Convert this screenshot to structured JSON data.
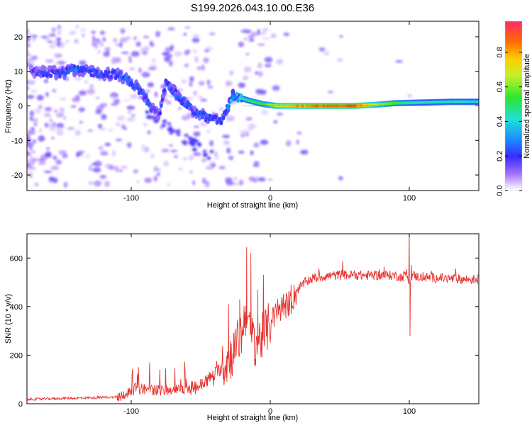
{
  "title": "S199.2026.043.10.00.E36",
  "colors": {
    "snr_line": "#e8322e",
    "ridge_low": "#7a3ff0",
    "ridge_mid": "#18d8d8",
    "ridge_high": "#ff2a2a"
  },
  "chart_data": [
    {
      "type": "heatmap",
      "name": "spectrogram",
      "xlabel": "Height of straight line (km)",
      "ylabel": "Frequency (Hz)",
      "xlim": [
        -175,
        150
      ],
      "ylim": [
        -24.5,
        24.5
      ],
      "xticks": [
        -100,
        0,
        100
      ],
      "yticks": [
        -20,
        -10,
        0,
        10,
        20
      ],
      "xtick_labels": [
        "-100",
        "0",
        "100"
      ],
      "ytick_labels": [
        "-20",
        "-10",
        "0",
        "10",
        "20"
      ],
      "colorbar": {
        "label": "Normalized spectral amplitude",
        "range": [
          0,
          0.98
        ],
        "ticks": [
          0.0,
          0.2,
          0.4,
          0.6,
          0.8
        ],
        "tick_labels": [
          "0.0",
          "0.2",
          "0.4",
          "0.6",
          "0.8"
        ]
      },
      "ridge": [
        {
          "x": -170,
          "f": 10.0,
          "a": 0.18
        },
        {
          "x": -150,
          "f": 9.5,
          "a": 0.24
        },
        {
          "x": -140,
          "f": 10.5,
          "a": 0.26
        },
        {
          "x": -125,
          "f": 9.5,
          "a": 0.22
        },
        {
          "x": -110,
          "f": 9.0,
          "a": 0.22
        },
        {
          "x": -100,
          "f": 7.0,
          "a": 0.26
        },
        {
          "x": -92,
          "f": 3.5,
          "a": 0.24
        },
        {
          "x": -85,
          "f": -1.0,
          "a": 0.22
        },
        {
          "x": -80,
          "f": -3.0,
          "a": 0.2
        },
        {
          "x": -75,
          "f": 7.0,
          "a": 0.25
        },
        {
          "x": -65,
          "f": 2.0,
          "a": 0.25
        },
        {
          "x": -55,
          "f": -1.5,
          "a": 0.22
        },
        {
          "x": -45,
          "f": -3.5,
          "a": 0.24
        },
        {
          "x": -35,
          "f": -4.5,
          "a": 0.24
        },
        {
          "x": -27,
          "f": 3.0,
          "a": 0.36
        },
        {
          "x": -15,
          "f": 1.5,
          "a": 0.5
        },
        {
          "x": -5,
          "f": 0.5,
          "a": 0.55
        },
        {
          "x": 5,
          "f": 0.0,
          "a": 0.7
        },
        {
          "x": 20,
          "f": 0.0,
          "a": 0.82
        },
        {
          "x": 40,
          "f": 0.0,
          "a": 0.88
        },
        {
          "x": 60,
          "f": 0.0,
          "a": 0.9
        },
        {
          "x": 75,
          "f": 0.3,
          "a": 0.7
        },
        {
          "x": 90,
          "f": 0.8,
          "a": 0.55
        },
        {
          "x": 110,
          "f": 1.0,
          "a": 0.45
        },
        {
          "x": 130,
          "f": 1.2,
          "a": 0.45
        },
        {
          "x": 150,
          "f": 1.2,
          "a": 0.42
        }
      ]
    },
    {
      "type": "line",
      "name": "snr",
      "xlabel": "Height of straight line (km)",
      "ylabel": "SNR (10 * v/v)",
      "xlim": [
        -175,
        150
      ],
      "ylim": [
        0,
        700
      ],
      "xticks": [
        -100,
        0,
        100
      ],
      "yticks": [
        0,
        200,
        400,
        600
      ],
      "xtick_labels": [
        "-100",
        "0",
        "100"
      ],
      "ytick_labels": [
        "0",
        "200",
        "400",
        "600"
      ],
      "x": [
        -175,
        -150,
        -125,
        -110,
        -100,
        -95,
        -90,
        -80,
        -70,
        -60,
        -50,
        -45,
        -40,
        -35,
        -30,
        -25,
        -20,
        -17,
        -15,
        -10,
        -5,
        0,
        5,
        10,
        15,
        20,
        25,
        30,
        40,
        50,
        60,
        70,
        80,
        90,
        95,
        98,
        100,
        102,
        105,
        110,
        120,
        130,
        140,
        150
      ],
      "values": [
        18,
        22,
        25,
        28,
        50,
        70,
        60,
        55,
        58,
        60,
        75,
        100,
        120,
        150,
        180,
        230,
        300,
        400,
        290,
        250,
        280,
        330,
        380,
        400,
        420,
        470,
        500,
        515,
        525,
        530,
        530,
        528,
        530,
        528,
        520,
        540,
        500,
        530,
        525,
        520,
        518,
        515,
        512,
        512
      ],
      "spikes": [
        {
          "x": -17,
          "y": 645
        },
        {
          "x": -14,
          "y": 620
        },
        {
          "x": -9,
          "y": 470
        },
        {
          "x": -22,
          "y": 430
        },
        {
          "x": -30,
          "y": 410
        },
        {
          "x": 100,
          "y": 710
        },
        {
          "x": 100.5,
          "y": 280
        },
        {
          "x": 15,
          "y": 490
        }
      ]
    }
  ]
}
